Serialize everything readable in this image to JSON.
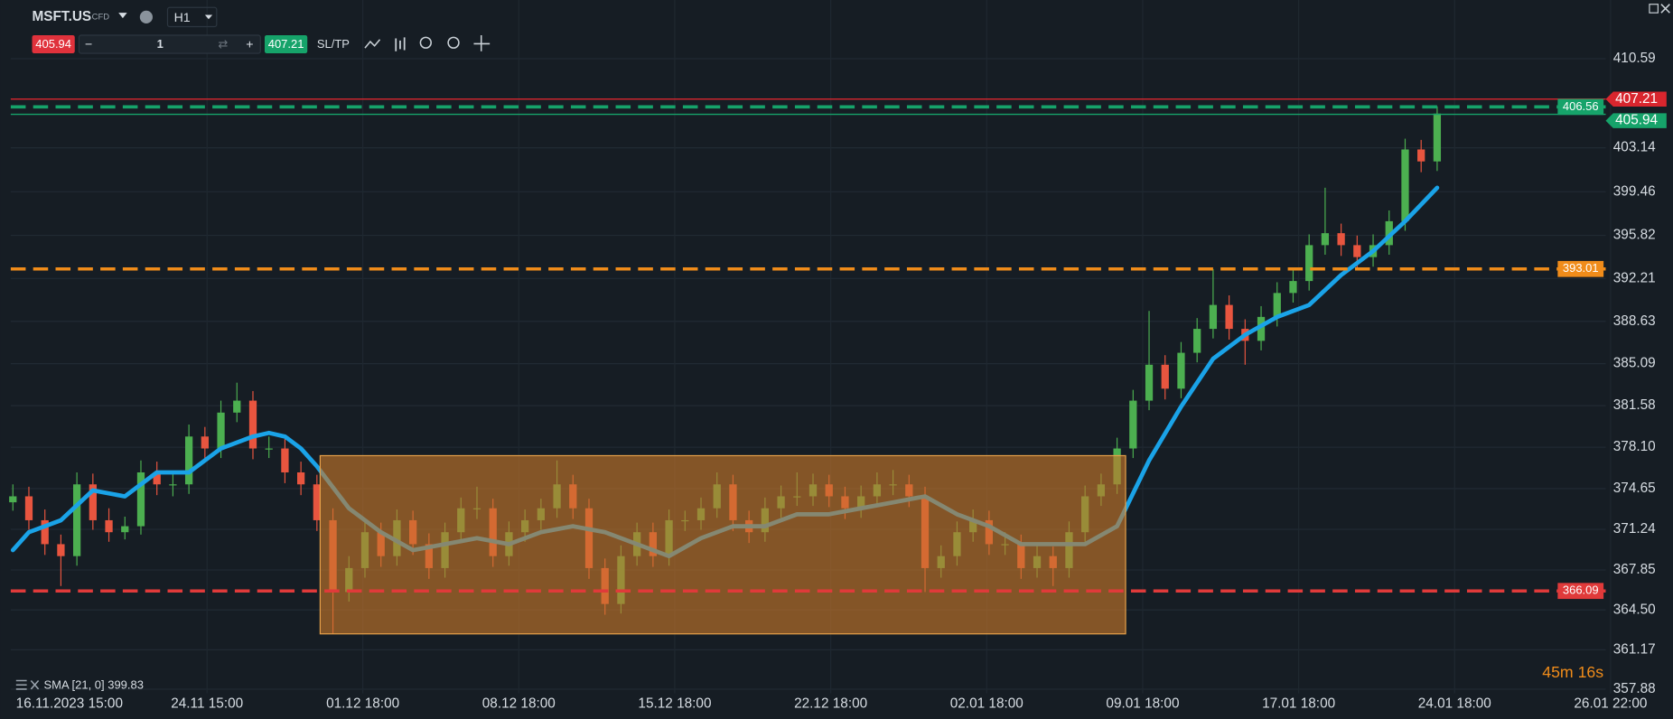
{
  "toolbar": {
    "symbol": "MSFT.US",
    "kind": "CFD",
    "timeframe": "H1",
    "quantity": "1",
    "sltp": "SL/TP"
  },
  "chart_data": {
    "type": "candlestick",
    "ylim": [
      357.88,
      410.59
    ],
    "yticks": [
      410.59,
      403.14,
      399.46,
      395.82,
      392.21,
      388.63,
      385.09,
      381.58,
      {
        "value": 378.1,
        "label": "378.10"
      },
      374.65,
      371.24,
      367.85,
      {
        "value": 364.5,
        "label": "364.50"
      },
      361.17,
      357.88
    ],
    "categories": [
      "16.11.2023 15:00",
      "24.11 15:00",
      "01.12 18:00",
      "08.12 18:00",
      "15.12 18:00",
      "22.12 18:00",
      "02.01 18:00",
      "09.01 18:00",
      "17.01 18:00",
      "24.01 18:00",
      "26.01 22:00"
    ],
    "up_color": "#4caf50",
    "down_color": "#e8553f",
    "grid": true,
    "candles": [
      [
        373.5,
        375,
        372.8,
        374
      ],
      [
        374,
        374.8,
        371.2,
        372
      ],
      [
        372,
        372.9,
        369.1,
        370
      ],
      [
        370,
        370.8,
        366.5,
        369
      ],
      [
        369,
        376,
        368.2,
        375
      ],
      [
        375,
        375.9,
        371.2,
        372
      ],
      [
        372,
        373,
        370.2,
        371
      ],
      [
        371,
        372.3,
        370.4,
        371.5
      ],
      [
        371.5,
        377,
        370.8,
        376
      ],
      [
        376,
        376.9,
        374.1,
        375
      ],
      [
        375,
        375.9,
        374,
        375
      ],
      [
        375,
        380,
        374.2,
        379
      ],
      [
        379,
        379.8,
        377.1,
        378
      ],
      [
        378,
        382,
        377.2,
        381
      ],
      [
        381,
        383.5,
        380.2,
        382
      ],
      [
        382,
        382.8,
        377.1,
        378
      ],
      [
        378,
        379,
        377.2,
        378
      ],
      [
        378,
        378.8,
        375.1,
        376
      ],
      [
        376,
        376.9,
        374.1,
        375
      ],
      [
        375,
        375.8,
        371.1,
        372
      ],
      [
        372,
        373,
        362.5,
        366
      ],
      [
        366,
        369,
        365.2,
        368
      ],
      [
        368,
        372,
        367.2,
        371
      ],
      [
        371,
        371.8,
        368.1,
        369
      ],
      [
        369,
        372.9,
        368.2,
        372
      ],
      [
        372,
        372.8,
        369.1,
        370
      ],
      [
        370,
        370.9,
        367.1,
        368
      ],
      [
        368,
        371.8,
        367.2,
        371
      ],
      [
        371,
        373.9,
        370.2,
        373
      ],
      [
        373,
        374.8,
        372.1,
        373
      ],
      [
        373,
        373.8,
        368.1,
        369
      ],
      [
        369,
        371.9,
        368.2,
        371
      ],
      [
        371,
        372.9,
        370.2,
        372
      ],
      [
        372,
        373.8,
        371.2,
        373
      ],
      [
        373,
        377,
        372.2,
        375
      ],
      [
        375,
        375.8,
        372.1,
        373
      ],
      [
        373,
        373.8,
        367.1,
        368
      ],
      [
        368,
        368.8,
        364.1,
        365
      ],
      [
        365,
        369.9,
        364.2,
        369
      ],
      [
        369,
        371.8,
        368.2,
        371
      ],
      [
        371,
        371.8,
        368.1,
        369
      ],
      [
        369,
        372.9,
        368.2,
        372
      ],
      [
        372,
        372.8,
        371.1,
        372
      ],
      [
        372,
        373.9,
        371.2,
        373
      ],
      [
        373,
        376,
        372.2,
        375
      ],
      [
        375,
        375.8,
        371.1,
        372
      ],
      [
        372,
        372.8,
        370.1,
        371
      ],
      [
        371,
        373.9,
        370.2,
        373
      ],
      [
        373,
        374.9,
        372.2,
        374
      ],
      [
        374,
        376,
        373.2,
        374
      ],
      [
        374,
        375.9,
        373.2,
        375
      ],
      [
        375,
        375.8,
        373.1,
        374
      ],
      [
        374,
        374.8,
        372.1,
        373
      ],
      [
        373,
        374.9,
        372.2,
        374
      ],
      [
        374,
        376,
        373.2,
        375
      ],
      [
        375,
        376.2,
        374.1,
        375
      ],
      [
        375,
        375.8,
        373.1,
        374
      ],
      [
        374,
        374.8,
        366,
        368
      ],
      [
        368,
        369.9,
        367.2,
        369
      ],
      [
        369,
        371.9,
        368.2,
        371
      ],
      [
        371,
        372.9,
        370.2,
        372
      ],
      [
        372,
        372.8,
        369.1,
        370
      ],
      [
        370,
        371,
        369.1,
        370
      ],
      [
        370,
        370.8,
        367.1,
        368
      ],
      [
        368,
        369.9,
        367.2,
        369
      ],
      [
        369,
        369.8,
        366.5,
        368
      ],
      [
        368,
        371.9,
        367.2,
        371
      ],
      [
        371,
        374.9,
        370.2,
        374
      ],
      [
        374,
        375.9,
        373.2,
        375
      ],
      [
        375,
        378.9,
        374.2,
        378
      ],
      [
        378,
        382.9,
        377.2,
        382
      ],
      [
        382,
        389.5,
        381.2,
        385
      ],
      [
        385,
        385.8,
        382.1,
        383
      ],
      [
        383,
        386.9,
        382.2,
        386
      ],
      [
        386,
        388.9,
        385.2,
        388
      ],
      [
        388,
        393,
        387.2,
        390
      ],
      [
        390,
        390.8,
        387.1,
        388
      ],
      [
        388,
        388.8,
        385,
        387
      ],
      [
        387,
        389.9,
        386.2,
        389
      ],
      [
        389,
        391.9,
        388.2,
        391
      ],
      [
        391,
        392.9,
        390.2,
        392
      ],
      [
        392,
        395.9,
        391.2,
        395
      ],
      [
        395,
        399.8,
        394.2,
        396
      ],
      [
        396,
        396.8,
        394.1,
        395
      ],
      [
        395,
        395.8,
        393.1,
        394
      ],
      [
        394,
        395.9,
        393.2,
        395
      ],
      [
        395,
        397.9,
        394.2,
        397
      ],
      [
        397,
        403.9,
        396.2,
        403
      ],
      [
        403,
        403.8,
        401.1,
        402
      ],
      [
        402,
        406.6,
        401.2,
        406
      ]
    ],
    "sma": {
      "label": "SMA [21, 0]",
      "value": 399.83,
      "color": "#1aa3e8",
      "x": [
        0,
        1,
        3,
        5,
        7,
        9,
        11,
        13,
        15,
        16,
        17,
        18,
        19,
        21,
        23,
        25,
        27,
        29,
        31,
        33,
        35,
        37,
        39,
        41,
        43,
        45,
        47,
        49,
        51,
        53,
        55,
        57,
        59,
        61,
        63,
        65,
        67,
        69,
        71,
        73,
        75,
        77,
        79,
        81,
        83,
        85,
        87,
        89
      ],
      "values": [
        369.5,
        371,
        372,
        374.5,
        374,
        376,
        376,
        378,
        379,
        379.3,
        379,
        378,
        376.5,
        373,
        371,
        369.5,
        370,
        370.5,
        370,
        371,
        371.5,
        371,
        370,
        369,
        370.5,
        371.5,
        371.5,
        372.5,
        372.5,
        373,
        373.5,
        374,
        372.5,
        371.5,
        370,
        370,
        370,
        371.5,
        377,
        381.5,
        385.5,
        387.5,
        389,
        390,
        392.5,
        394.5,
        397,
        399.8
      ]
    },
    "zone": {
      "top": 377.4,
      "bottom": 362.5,
      "color": "#c8782a"
    },
    "price_lines": [
      {
        "value": 407.21,
        "color": "#d9262e",
        "dashed": false,
        "side": "quote"
      },
      {
        "value": 405.94,
        "color": "#16a36a",
        "dashed": false,
        "side": "quote"
      },
      {
        "value": 406.56,
        "color": "#16a36a",
        "dashed": true,
        "side": "level"
      },
      {
        "value": 393.01,
        "color": "#f08c1a",
        "dashed": true,
        "side": "level"
      },
      {
        "value": 366.09,
        "color": "#e03a3a",
        "dashed": true,
        "side": "level"
      }
    ],
    "timer": "45m 16s"
  }
}
